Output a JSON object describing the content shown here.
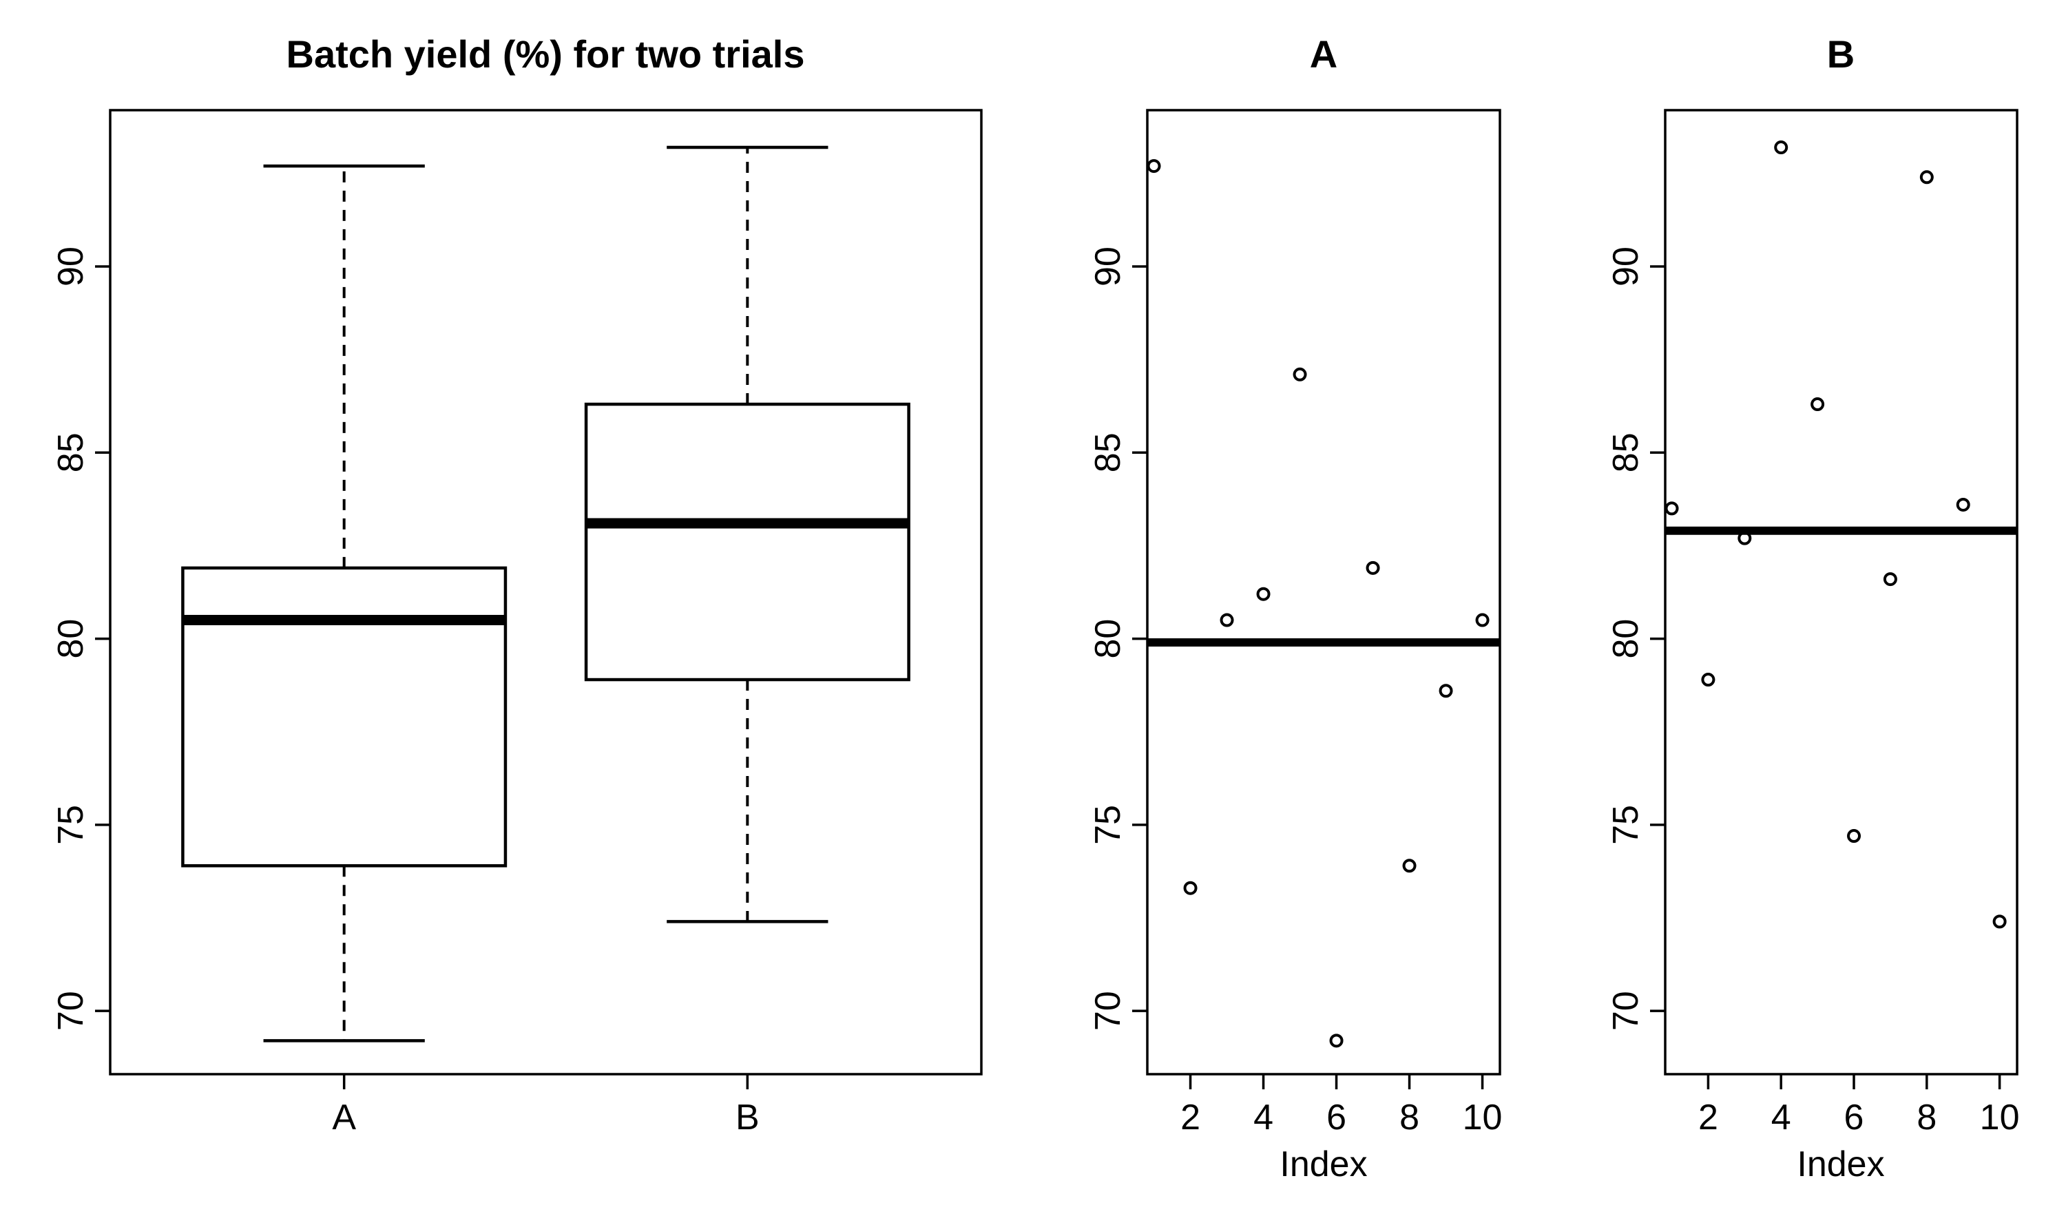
{
  "chart_data": [
    {
      "type": "box",
      "title": "Batch yield (%) for two trials",
      "xlabel": "",
      "ylabel": "",
      "categories": [
        "A",
        "B"
      ],
      "boxes": [
        {
          "name": "A",
          "min": 69.2,
          "q1": 73.9,
          "median": 80.5,
          "q3": 81.9,
          "max": 92.7
        },
        {
          "name": "B",
          "min": 72.4,
          "q1": 78.9,
          "median": 83.1,
          "q3": 86.3,
          "max": 93.2
        }
      ],
      "ylim": [
        68.3,
        94.2
      ],
      "yticks": [
        70,
        75,
        80,
        85,
        90
      ],
      "grid": false
    },
    {
      "type": "scatter",
      "title": "A",
      "xlabel": "Index",
      "ylabel": "",
      "x": [
        1,
        2,
        3,
        4,
        5,
        6,
        7,
        8,
        9,
        10
      ],
      "y": [
        92.7,
        73.3,
        80.5,
        81.2,
        87.1,
        69.2,
        81.9,
        73.9,
        78.6,
        80.5
      ],
      "hline": 79.9,
      "xlim": [
        0.82,
        10.48
      ],
      "ylim": [
        68.3,
        94.2
      ],
      "xticks": [
        2,
        4,
        6,
        8,
        10
      ],
      "yticks": [
        70,
        75,
        80,
        85,
        90
      ],
      "grid": false
    },
    {
      "type": "scatter",
      "title": "B",
      "xlabel": "Index",
      "ylabel": "",
      "x": [
        1,
        2,
        3,
        4,
        5,
        6,
        7,
        8,
        9,
        10
      ],
      "y": [
        83.5,
        78.9,
        82.7,
        93.2,
        86.3,
        74.7,
        81.6,
        92.4,
        83.6,
        72.4
      ],
      "hline": 82.9,
      "xlim": [
        0.82,
        10.48
      ],
      "ylim": [
        68.3,
        94.2
      ],
      "xticks": [
        2,
        4,
        6,
        8,
        10
      ],
      "yticks": [
        70,
        75,
        80,
        85,
        90
      ],
      "grid": false
    }
  ]
}
